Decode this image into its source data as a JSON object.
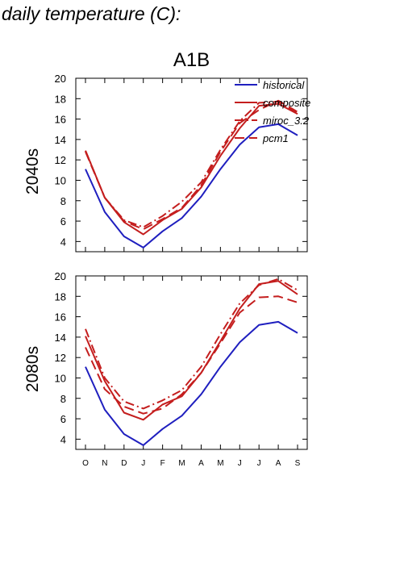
{
  "page_title": "daily temperature (C):",
  "colors": {
    "historical": "#1f1fbf",
    "future": "#c41e1e",
    "axis": "#000000"
  },
  "chart_data": [
    {
      "type": "line",
      "title": "A1B",
      "ylabel": "2040s",
      "ylim": [
        3,
        20
      ],
      "yticks": [
        4,
        6,
        8,
        10,
        12,
        14,
        16,
        18,
        20
      ],
      "categories": [
        "O",
        "N",
        "D",
        "J",
        "F",
        "M",
        "A",
        "M",
        "J",
        "J",
        "A",
        "S"
      ],
      "legend": {
        "position": "top-right",
        "entries": [
          "historical",
          "composite",
          "miroc_3.2",
          "pcm1"
        ]
      },
      "series": [
        {
          "name": "historical",
          "style": "solid",
          "color": "#1f1fbf",
          "values": [
            11.1,
            6.9,
            4.5,
            3.4,
            5.0,
            6.3,
            8.4,
            11.1,
            13.5,
            15.2,
            15.5,
            14.4
          ]
        },
        {
          "name": "composite",
          "style": "solid",
          "color": "#c41e1e",
          "values": [
            12.9,
            8.3,
            5.9,
            4.7,
            6.1,
            7.2,
            9.3,
            12.4,
            15.1,
            17.3,
            17.5,
            16.5
          ]
        },
        {
          "name": "miroc_3.2",
          "style": "dashdot",
          "color": "#c41e1e",
          "values": [
            12.9,
            8.3,
            6.1,
            5.4,
            6.5,
            7.9,
            9.8,
            13.0,
            15.8,
            17.6,
            17.7,
            16.6
          ]
        },
        {
          "name": "pcm1",
          "style": "dash",
          "color": "#c41e1e",
          "values": [
            12.8,
            8.3,
            6.0,
            5.2,
            6.2,
            7.3,
            9.5,
            12.8,
            15.6,
            16.9,
            17.8,
            16.7
          ]
        }
      ]
    },
    {
      "type": "line",
      "title": "",
      "ylabel": "2080s",
      "ylim": [
        3,
        20
      ],
      "yticks": [
        4,
        6,
        8,
        10,
        12,
        14,
        16,
        18,
        20
      ],
      "categories": [
        "O",
        "N",
        "D",
        "J",
        "F",
        "M",
        "A",
        "M",
        "J",
        "J",
        "A",
        "S"
      ],
      "series": [
        {
          "name": "historical",
          "style": "solid",
          "color": "#1f1fbf",
          "values": [
            11.1,
            6.9,
            4.5,
            3.4,
            5.0,
            6.3,
            8.4,
            11.1,
            13.5,
            15.2,
            15.5,
            14.4
          ]
        },
        {
          "name": "composite",
          "style": "solid",
          "color": "#c41e1e",
          "values": [
            14.1,
            9.7,
            6.6,
            5.9,
            7.4,
            8.2,
            10.5,
            13.6,
            16.8,
            19.2,
            19.5,
            18.2
          ]
        },
        {
          "name": "miroc_3.2",
          "style": "dashdot",
          "color": "#c41e1e",
          "values": [
            14.8,
            10.0,
            7.7,
            7.0,
            7.8,
            8.8,
            11.1,
            14.3,
            17.3,
            19.1,
            19.7,
            18.6
          ]
        },
        {
          "name": "pcm1",
          "style": "dash",
          "color": "#c41e1e",
          "values": [
            13.0,
            8.9,
            7.2,
            6.5,
            7.0,
            8.4,
            10.5,
            13.4,
            16.4,
            17.9,
            18.0,
            17.4
          ]
        }
      ]
    }
  ]
}
